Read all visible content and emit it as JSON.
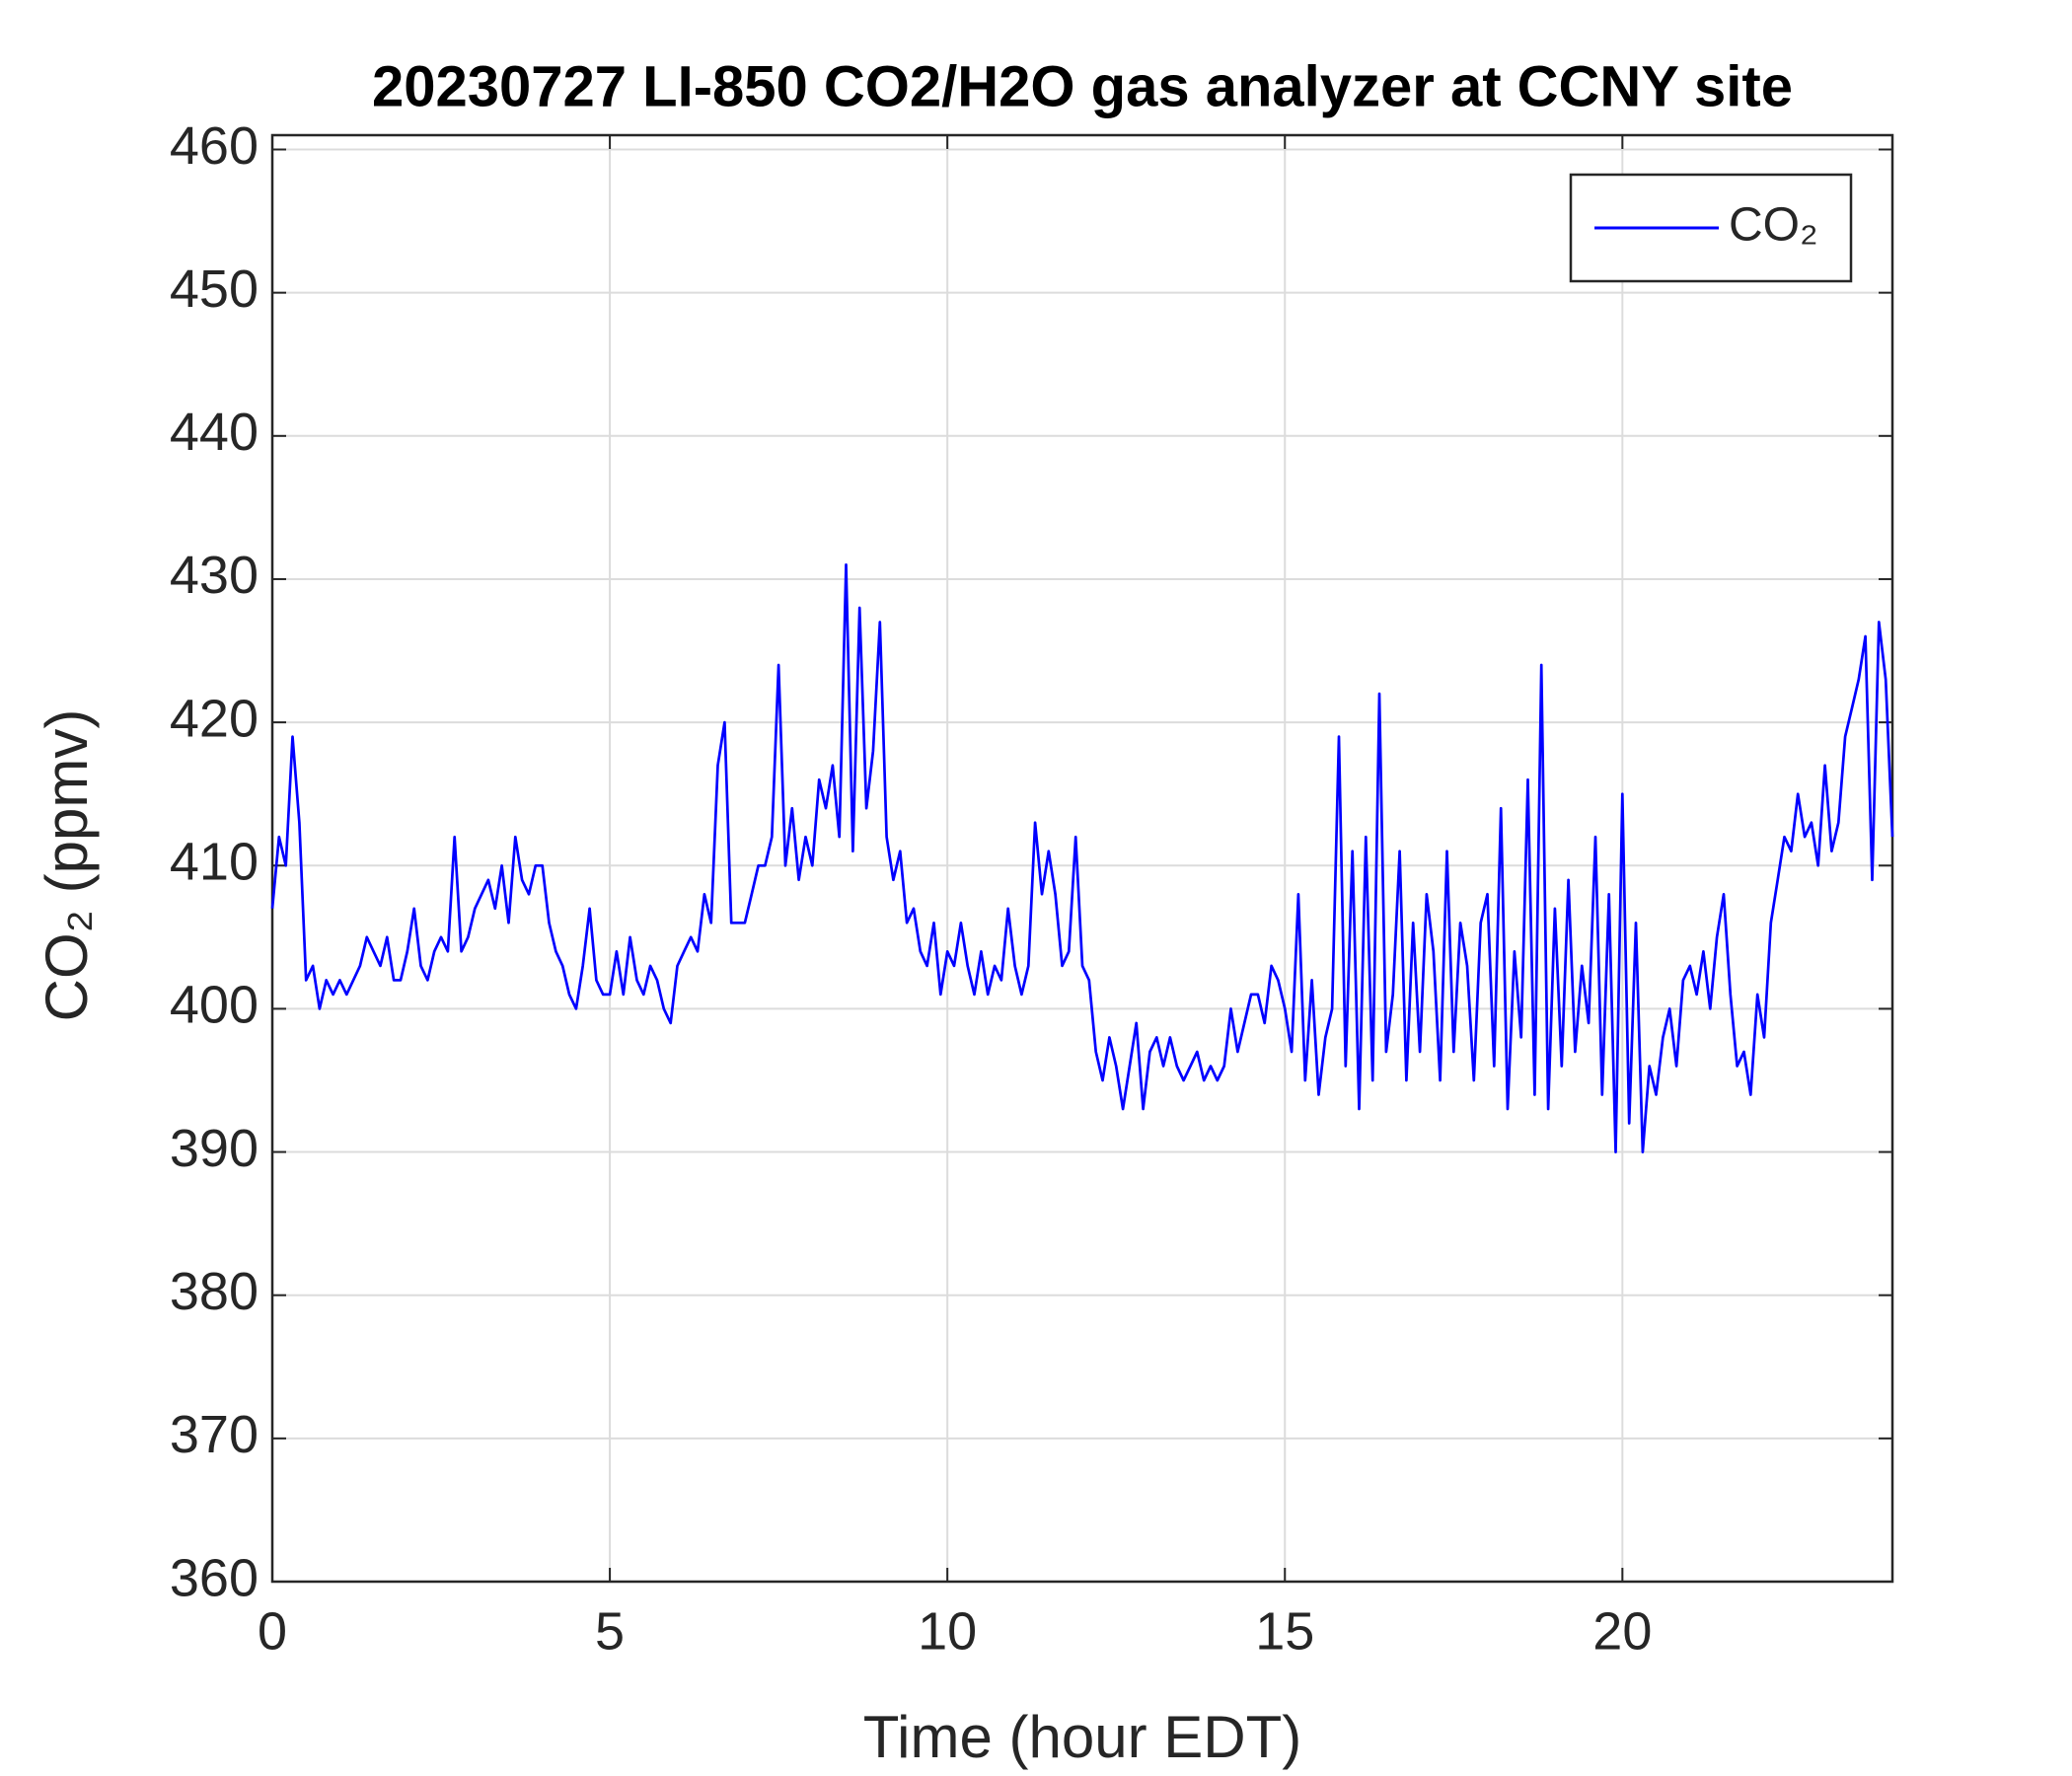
{
  "chart_data": {
    "type": "line",
    "title": "20230727 LI-850 CO2/H2O gas analyzer at CCNY site",
    "xlabel": "Time (hour EDT)",
    "ylabel": "CO₂ (ppmv)",
    "xlim": [
      0,
      24
    ],
    "ylim": [
      360,
      461
    ],
    "xticks": [
      0,
      5,
      10,
      15,
      20
    ],
    "yticks": [
      360,
      370,
      380,
      390,
      400,
      410,
      420,
      430,
      440,
      450,
      460
    ],
    "grid": true,
    "legend": "upper right",
    "x": [
      0.0,
      0.1,
      0.2,
      0.3,
      0.4,
      0.5,
      0.6,
      0.7,
      0.8,
      0.9,
      1.0,
      1.1,
      1.2,
      1.3,
      1.4,
      1.5,
      1.6,
      1.7,
      1.8,
      1.9,
      2.0,
      2.1,
      2.2,
      2.3,
      2.4,
      2.5,
      2.6,
      2.7,
      2.8,
      2.9,
      3.0,
      3.1,
      3.2,
      3.3,
      3.4,
      3.5,
      3.6,
      3.7,
      3.8,
      3.9,
      4.0,
      4.1,
      4.2,
      4.3,
      4.4,
      4.5,
      4.6,
      4.7,
      4.8,
      4.9,
      5.0,
      5.1,
      5.2,
      5.3,
      5.4,
      5.5,
      5.6,
      5.7,
      5.8,
      5.9,
      6.0,
      6.1,
      6.2,
      6.3,
      6.4,
      6.5,
      6.6,
      6.7,
      6.8,
      6.9,
      7.0,
      7.1,
      7.2,
      7.3,
      7.4,
      7.5,
      7.6,
      7.7,
      7.8,
      7.9,
      8.0,
      8.1,
      8.2,
      8.3,
      8.4,
      8.5,
      8.6,
      8.7,
      8.8,
      8.9,
      9.0,
      9.1,
      9.2,
      9.3,
      9.4,
      9.5,
      9.6,
      9.7,
      9.8,
      9.9,
      10.0,
      10.1,
      10.2,
      10.3,
      10.4,
      10.5,
      10.6,
      10.7,
      10.8,
      10.9,
      11.0,
      11.1,
      11.2,
      11.3,
      11.4,
      11.5,
      11.6,
      11.7,
      11.8,
      11.9,
      12.0,
      12.1,
      12.2,
      12.3,
      12.4,
      12.5,
      12.6,
      12.7,
      12.8,
      12.9,
      13.0,
      13.1,
      13.2,
      13.3,
      13.4,
      13.5,
      13.6,
      13.7,
      13.8,
      13.9,
      14.0,
      14.1,
      14.2,
      14.3,
      14.4,
      14.5,
      14.6,
      14.7,
      14.8,
      14.9,
      15.0,
      15.1,
      15.2,
      15.3,
      15.4,
      15.5,
      15.6,
      15.7,
      15.8,
      15.9,
      16.0,
      16.1,
      16.2,
      16.3,
      16.4,
      16.5,
      16.6,
      16.7,
      16.8,
      16.9,
      17.0,
      17.1,
      17.2,
      17.3,
      17.4,
      17.5,
      17.6,
      17.7,
      17.8,
      17.9,
      18.0,
      18.1,
      18.2,
      18.3,
      18.4,
      18.5,
      18.6,
      18.7,
      18.8,
      18.9,
      19.0,
      19.1,
      19.2,
      19.3,
      19.4,
      19.5,
      19.6,
      19.7,
      19.8,
      19.9,
      20.0,
      20.1,
      20.2,
      20.3,
      20.4,
      20.5,
      20.6,
      20.7,
      20.8,
      20.9,
      21.0,
      21.1,
      21.2,
      21.3,
      21.4,
      21.5,
      21.6,
      21.7,
      21.8,
      21.9,
      22.0,
      22.1,
      22.2,
      22.3,
      22.4,
      22.5,
      22.6,
      22.7,
      22.8,
      22.9,
      23.0,
      23.1,
      23.2,
      23.3,
      23.4,
      23.5,
      23.6,
      23.7,
      23.8,
      23.9,
      24.0
    ],
    "series": [
      {
        "name": "CO₂",
        "color": "#0000ff",
        "values": [
          407,
          412,
          410,
          419,
          413,
          402,
          403,
          400,
          402,
          401,
          402,
          401,
          402,
          403,
          405,
          404,
          403,
          405,
          402,
          402,
          404,
          407,
          403,
          402,
          404,
          405,
          404,
          412,
          404,
          405,
          407,
          408,
          409,
          407,
          410,
          406,
          412,
          409,
          408,
          410,
          410,
          406,
          404,
          403,
          401,
          400,
          403,
          407,
          402,
          401,
          401,
          404,
          401,
          405,
          402,
          401,
          403,
          402,
          400,
          399,
          403,
          404,
          405,
          404,
          408,
          406,
          417,
          420,
          406,
          406,
          406,
          408,
          410,
          410,
          412,
          424,
          410,
          414,
          409,
          412,
          410,
          416,
          414,
          417,
          412,
          431,
          411,
          428,
          414,
          418,
          427,
          412,
          409,
          411,
          406,
          407,
          404,
          403,
          406,
          401,
          404,
          403,
          406,
          403,
          401,
          404,
          401,
          403,
          402,
          407,
          403,
          401,
          403,
          413,
          408,
          411,
          408,
          403,
          404,
          412,
          403,
          402,
          397,
          395,
          398,
          396,
          393,
          396,
          399,
          393,
          397,
          398,
          396,
          398,
          396,
          395,
          396,
          397,
          395,
          396,
          395,
          396,
          400,
          397,
          399,
          401,
          401,
          399,
          403,
          402,
          400,
          397,
          408,
          395,
          402,
          394,
          398,
          400,
          419,
          396,
          411,
          393,
          412,
          395,
          422,
          397,
          401,
          411,
          395,
          406,
          397,
          408,
          404,
          395,
          411,
          397,
          406,
          403,
          395,
          406,
          408,
          396,
          414,
          393,
          404,
          398,
          416,
          394,
          424,
          393,
          407,
          396,
          409,
          397,
          403,
          399,
          412,
          394,
          408,
          390,
          415,
          392,
          406,
          390,
          396,
          394,
          398,
          400,
          396,
          402,
          403,
          401,
          404,
          400,
          405,
          408,
          401,
          396,
          397,
          394,
          401,
          398,
          406,
          409,
          412,
          411,
          415,
          412,
          413,
          410,
          417,
          411,
          413,
          419,
          421,
          423,
          426,
          409,
          427,
          423,
          412
        ]
      }
    ]
  }
}
